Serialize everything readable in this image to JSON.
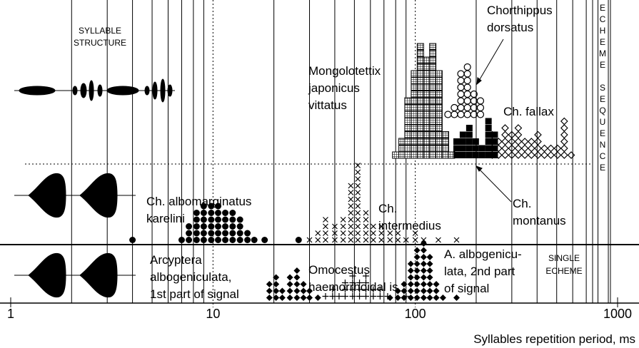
{
  "chart_data": {
    "type": "dot-histogram",
    "log_x": true,
    "x_label": "Syllables repetition period, ms",
    "xlim": [
      1,
      1000
    ],
    "xticks": [
      1,
      10,
      100,
      1000
    ],
    "minor_xticks": [
      2,
      3,
      4,
      5,
      6,
      7,
      8,
      9,
      20,
      30,
      40,
      50,
      60,
      70,
      80,
      90,
      200,
      300,
      400,
      500,
      600,
      700,
      800,
      900
    ],
    "syllable_structure": [
      "SYLLABLE",
      "STRUCTURE"
    ],
    "single_echeme": [
      "SINGLE",
      "ECHEME"
    ],
    "echeme_sequence": "ECHEME SEQUENCE",
    "series": [
      {
        "name": [
          "Mongolotettix",
          "japonicus",
          "vittatus"
        ],
        "marker": "square-grid",
        "color": "#000",
        "x": [
          80,
          86,
          92,
          99,
          106,
          114,
          122,
          131,
          141,
          151
        ],
        "values": [
          1,
          3,
          9,
          13,
          17,
          15,
          17,
          13,
          4,
          1
        ]
      },
      {
        "name": [
          "Ch.",
          "montanus"
        ],
        "marker": "filled-square",
        "color": "#000",
        "x": [
          160,
          172,
          185,
          199,
          214,
          230,
          247
        ],
        "values": [
          3,
          4,
          5,
          3,
          2,
          6,
          4
        ]
      },
      {
        "name": [
          "Chorthippus",
          "dorsatus"
        ],
        "marker": "open-circle",
        "color": "#000",
        "x": [
          145,
          156,
          168,
          181,
          195,
          210
        ],
        "values": [
          1,
          2,
          7,
          8,
          4,
          3
        ]
      },
      {
        "name": [
          "Ch. fallax"
        ],
        "marker": "open-diamond",
        "color": "#000",
        "x": [
          240,
          258,
          278,
          300,
          323,
          348,
          375,
          404,
          435,
          468,
          505,
          545,
          590
        ],
        "values": [
          4,
          3,
          5,
          4,
          5,
          3,
          3,
          4,
          2,
          2,
          2,
          6,
          1
        ]
      },
      {
        "name": [
          "Ch. albomarginatus",
          "karelini"
        ],
        "marker": "filled-circle",
        "color": "#000",
        "x": [
          4,
          7,
          7.6,
          8.3,
          9,
          9.8,
          10.6,
          11.5,
          12.5,
          13.6,
          14.8,
          16,
          18,
          26.5
        ],
        "values": [
          1,
          1,
          3,
          5,
          6,
          6,
          6,
          5,
          5,
          4,
          2,
          1,
          1,
          1
        ]
      },
      {
        "name": [
          "Ch.",
          "intermedius"
        ],
        "marker": "x",
        "color": "#000",
        "x": [
          30,
          33,
          36,
          40,
          44,
          48,
          52,
          57,
          62,
          68,
          75,
          82,
          90,
          100,
          110,
          130,
          160
        ],
        "values": [
          1,
          2,
          4,
          3,
          4,
          9,
          12,
          5,
          3,
          3,
          2,
          2,
          1,
          2,
          1,
          1,
          1
        ]
      },
      {
        "name": [
          "Arcyptera",
          "albogeniculata,",
          "1st part of signal"
        ],
        "marker": "filled-diamond",
        "color": "#000",
        "x": [
          19,
          20.5,
          22,
          24,
          26,
          28,
          30,
          33
        ],
        "values": [
          3,
          4,
          2,
          4,
          5,
          3,
          2,
          1
        ]
      },
      {
        "name": [
          "Omocestus",
          "haemorrhoidal is"
        ],
        "marker": "plus",
        "color": "#000",
        "x": [
          36,
          39,
          42,
          45,
          49,
          53,
          57,
          62,
          67,
          73,
          90
        ],
        "values": [
          1,
          2,
          1,
          3,
          4,
          3,
          4,
          2,
          2,
          1,
          1
        ]
      },
      {
        "name": [
          "A. albogenicu-",
          "lata, 2nd part",
          "of signal"
        ],
        "marker": "filled-diamond",
        "color": "#000",
        "x": [
          75,
          82,
          88,
          95,
          102,
          110,
          118,
          127,
          137,
          160
        ],
        "values": [
          1,
          2,
          3,
          6,
          8,
          9,
          7,
          3,
          1,
          1
        ]
      }
    ]
  }
}
